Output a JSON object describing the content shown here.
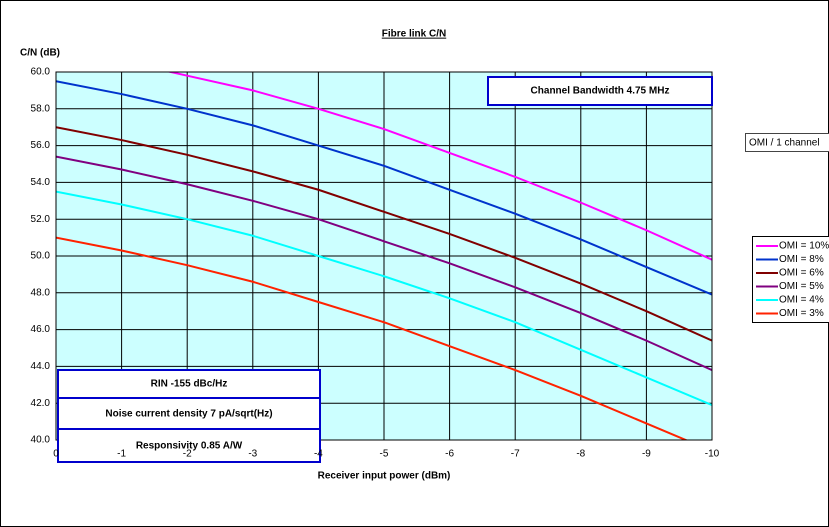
{
  "chart_data": {
    "type": "line",
    "title": "Fibre link C/N",
    "ylabel": "C/N (dB)",
    "xlabel": "Receiver input power (dBm)",
    "x": [
      0,
      -1,
      -2,
      -3,
      -4,
      -5,
      -6,
      -7,
      -8,
      -9,
      -10
    ],
    "xlim": [
      0,
      -10
    ],
    "xticks": [
      0,
      -1,
      -2,
      -3,
      -4,
      -5,
      -6,
      -7,
      -8,
      -9,
      -10
    ],
    "ylim": [
      40,
      60
    ],
    "yticks": [
      {
        "value": 40,
        "label": "40.0"
      },
      {
        "value": 42,
        "label": "42.0"
      },
      {
        "value": 44,
        "label": "44.0"
      },
      {
        "value": 46,
        "label": "46.0"
      },
      {
        "value": 48,
        "label": "48.0"
      },
      {
        "value": 50,
        "label": "50.0"
      },
      {
        "value": 52,
        "label": "52.0"
      },
      {
        "value": 54,
        "label": "54.0"
      },
      {
        "value": 56,
        "label": "56.0"
      },
      {
        "value": 58,
        "label": "58.0"
      },
      {
        "value": 60,
        "label": "60.0"
      }
    ],
    "grid": true,
    "background": "#ccffff",
    "legend_title": "OMI / 1 channel",
    "series": [
      {
        "name": "OMI = 10%",
        "color": "#ff00ff",
        "values": [
          61.2,
          60.6,
          59.8,
          59.0,
          58.0,
          56.9,
          55.6,
          54.3,
          52.9,
          51.4,
          49.8
        ]
      },
      {
        "name": "OMI = 8%",
        "color": "#0033cc",
        "values": [
          59.5,
          58.8,
          58.0,
          57.1,
          56.0,
          54.9,
          53.6,
          52.3,
          50.9,
          49.4,
          47.9
        ]
      },
      {
        "name": "OMI = 6%",
        "color": "#800000",
        "values": [
          57.0,
          56.3,
          55.5,
          54.6,
          53.6,
          52.4,
          51.2,
          49.9,
          48.5,
          47.0,
          45.4
        ]
      },
      {
        "name": "OMI = 5%",
        "color": "#800080",
        "values": [
          55.4,
          54.7,
          53.9,
          53.0,
          52.0,
          50.8,
          49.6,
          48.3,
          46.9,
          45.4,
          43.8
        ]
      },
      {
        "name": "OMI = 4%",
        "color": "#00ffff",
        "values": [
          53.5,
          52.8,
          52.0,
          51.1,
          50.0,
          48.9,
          47.7,
          46.4,
          44.9,
          43.4,
          41.9
        ]
      },
      {
        "name": "OMI = 3%",
        "color": "#ff2200",
        "values": [
          51.0,
          50.3,
          49.5,
          48.6,
          47.5,
          46.4,
          45.1,
          43.8,
          42.4,
          40.9,
          39.4
        ]
      }
    ],
    "annotations": [
      "Channel Bandwidth 4.75 MHz",
      "RIN  -155 dBc/Hz",
      "Noise current density 7 pA/sqrt(Hz)",
      "Responsivity 0.85 A/W"
    ]
  }
}
